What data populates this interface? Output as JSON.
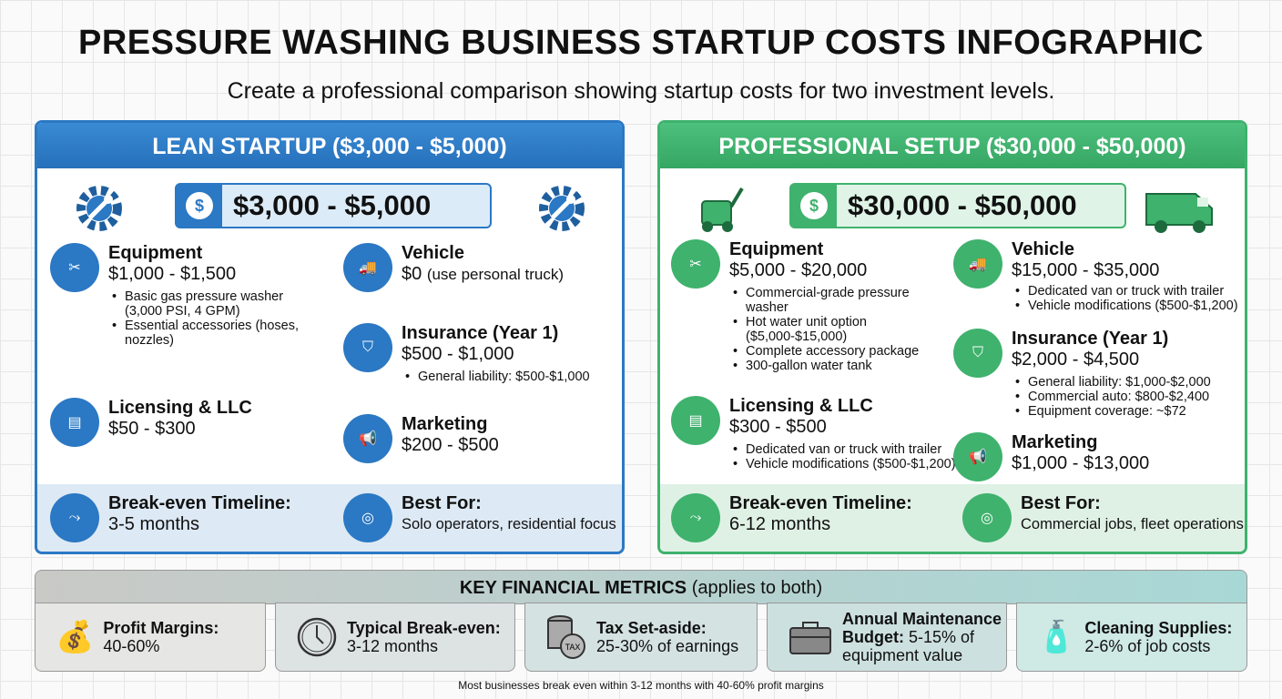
{
  "title": "PRESSURE WASHING BUSINESS STARTUP COSTS INFOGRAPHIC",
  "subtitle": "Create a professional comparison showing startup costs for two investment levels.",
  "colors": {
    "lean": "#2b78c4",
    "professional": "#3fb26d"
  },
  "lean": {
    "header": "LEAN STARTUP ($3,000 - $5,000)",
    "price": "$3,000 - $5,000",
    "equipment": {
      "title": "Equipment",
      "value": "$1,000 - $1,500",
      "bullets": [
        "Basic gas pressure washer (3,000 PSI, 4 GPM)",
        "Essential accessories (hoses, nozzles)"
      ]
    },
    "vehicle": {
      "title": "Vehicle",
      "value": "$0",
      "note": "(use personal truck)"
    },
    "insurance": {
      "title": "Insurance (Year 1)",
      "value": "$500 - $1,000",
      "bullets": [
        "General liability: $500-$1,000"
      ]
    },
    "licensing": {
      "title": "Licensing & LLC",
      "value": "$50 - $300"
    },
    "marketing": {
      "title": "Marketing",
      "value": "$200 - $500"
    },
    "breakeven": {
      "title": "Break-even Timeline:",
      "value": "3-5 months"
    },
    "best_for": {
      "title": "Best For:",
      "value": "Solo operators, residential focus"
    }
  },
  "professional": {
    "header": "PROFESSIONAL SETUP ($30,000 - $50,000)",
    "price": "$30,000 - $50,000",
    "equipment": {
      "title": "Equipment",
      "value": "$5,000 - $20,000",
      "bullets": [
        "Commercial-grade pressure washer",
        "Hot water unit option ($5,000-$15,000)",
        "Complete accessory package",
        "300-gallon water tank"
      ]
    },
    "vehicle": {
      "title": "Vehicle",
      "value": "$15,000 - $35,000",
      "bullets": [
        "Dedicated van or truck with trailer",
        "Vehicle modifications ($500-$1,200)"
      ]
    },
    "insurance": {
      "title": "Insurance (Year 1)",
      "value": "$2,000 - $4,500",
      "bullets": [
        "General liability: $1,000-$2,000",
        "Commercial auto: $800-$2,400",
        "Equipment coverage: ~$72"
      ]
    },
    "licensing": {
      "title": "Licensing & LLC",
      "value": "$300 - $500",
      "bullets": [
        "Dedicated van or truck with trailer",
        "Vehicle modifications ($500-$1,200)"
      ]
    },
    "marketing": {
      "title": "Marketing",
      "value": "$1,000 - $13,000"
    },
    "breakeven": {
      "title": "Break-even Timeline:",
      "value": "6-12 months"
    },
    "best_for": {
      "title": "Best For:",
      "value": "Commercial jobs, fleet operations"
    }
  },
  "metrics": {
    "header_bold": "KEY FINANCIAL METRICS",
    "header_rest": " (applies to both)",
    "cards": [
      {
        "label": "Profit Margins:",
        "value": "40-60%",
        "icon": "money-bag-hand-icon"
      },
      {
        "label": "Typical Break-even:",
        "value": "3-12 months",
        "icon": "clock-icon"
      },
      {
        "label": "Tax Set-aside:",
        "value": "25-30% of earnings",
        "icon": "tax-coins-icon"
      },
      {
        "label": "Annual Maintenance Budget:",
        "value": "5-15% of equipment value",
        "icon": "toolbox-icon"
      },
      {
        "label": "Cleaning Supplies:",
        "value": "2-6% of job costs",
        "icon": "spray-bottle-icon"
      }
    ],
    "tax_icon_text": "TAX"
  },
  "footer": "Most businesses break even within 3-12 months with 40-60% profit margins"
}
